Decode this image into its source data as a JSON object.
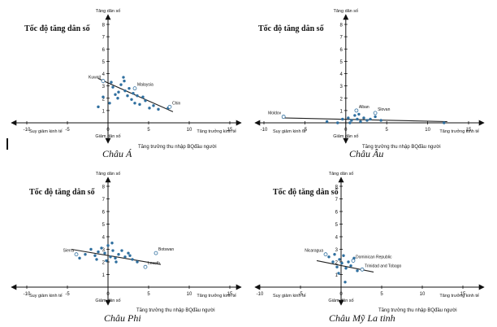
{
  "colors": {
    "point": "#2f6f9f",
    "point_hollow": "#ffffff",
    "axis": "#111111",
    "trend": "#222222"
  },
  "chart_data": [
    {
      "type": "scatter",
      "title": "Tốc độ tăng dân số",
      "caption": "Châu Á",
      "xlabel": "Tăng trưởng thu nhập BQđầu người",
      "y_top_label": "Tăng dân số",
      "y_bottom_label": "Giảm dân số",
      "x_left_label": "Suy giảm kinh tế",
      "x_right_label": "Tăng trưởng kinh tế",
      "xlim": [
        -10,
        15
      ],
      "ylim": [
        -1,
        8
      ],
      "xticks": [
        "-10",
        "-5",
        "0",
        "5",
        "10",
        "15"
      ],
      "yticks": [
        "1",
        "2",
        "3",
        "4",
        "5",
        "6",
        "7",
        "8"
      ],
      "points": [
        [
          -1.2,
          1.3
        ],
        [
          -0.6,
          2.1
        ],
        [
          0.4,
          3.3
        ],
        [
          0.6,
          2.9
        ],
        [
          0.9,
          2.3
        ],
        [
          1.3,
          2.5
        ],
        [
          1.6,
          3.1
        ],
        [
          1.9,
          3.7
        ],
        [
          2.1,
          2.6
        ],
        [
          2.4,
          2.2
        ],
        [
          2.6,
          2.8
        ],
        [
          2.9,
          1.9
        ],
        [
          3.3,
          1.6
        ],
        [
          3.6,
          2.2
        ],
        [
          3.9,
          1.5
        ],
        [
          4.3,
          2.1
        ],
        [
          4.6,
          1.8
        ],
        [
          5.1,
          1.2
        ],
        [
          5.6,
          1.4
        ],
        [
          6.2,
          1.1
        ],
        [
          7.4,
          1.2
        ],
        [
          1.2,
          2.0
        ],
        [
          2.0,
          3.4
        ],
        [
          3.1,
          2.4
        ],
        [
          0.2,
          1.6
        ]
      ],
      "hollow_points": [
        [
          -0.6,
          3.4
        ],
        [
          3.3,
          2.8
        ],
        [
          7.6,
          1.3
        ]
      ],
      "annotations": [
        {
          "text": "Kuwait",
          "x": -0.6,
          "y": 3.4
        },
        {
          "text": "Malaysia",
          "x": 3.3,
          "y": 2.8
        },
        {
          "text": "Chin",
          "x": 7.6,
          "y": 1.3
        }
      ],
      "trend": [
        [
          -1.2,
          3.6
        ],
        [
          8,
          0.9
        ]
      ]
    },
    {
      "type": "scatter",
      "title": "Tốc độ tăng dân số",
      "caption": "Châu Âu",
      "xlabel": "Tăng trưởng thu nhập BQđầu người",
      "y_top_label": "Tăng dân số",
      "y_bottom_label": "Giảm dân số",
      "x_left_label": "Suy giảm kinh tế",
      "x_right_label": "Tăng trưởng kinh tế",
      "xlim": [
        -10,
        15
      ],
      "ylim": [
        -1,
        8
      ],
      "xticks": [
        "-10",
        "-5",
        "0",
        "5",
        "10",
        "15"
      ],
      "yticks": [
        "1",
        "2",
        "3",
        "4",
        "5",
        "6",
        "7",
        "8"
      ],
      "points": [
        [
          -2.3,
          0.1
        ],
        [
          -1.0,
          0.0
        ],
        [
          -0.4,
          0.3
        ],
        [
          0.3,
          0.4
        ],
        [
          0.7,
          0.2
        ],
        [
          1.1,
          0.6
        ],
        [
          1.4,
          0.3
        ],
        [
          1.8,
          0.1
        ],
        [
          2.2,
          0.4
        ],
        [
          2.6,
          0.2
        ],
        [
          3.0,
          0.3
        ],
        [
          3.6,
          0.5
        ],
        [
          4.3,
          0.2
        ],
        [
          12.0,
          0.0
        ],
        [
          1.6,
          0.7
        ],
        [
          0.5,
          0.0
        ]
      ],
      "hollow_points": [
        [
          -7.6,
          0.5
        ],
        [
          1.3,
          1.0
        ],
        [
          3.6,
          0.8
        ]
      ],
      "annotations": [
        {
          "text": "Moldov",
          "x": -7.6,
          "y": 0.5
        },
        {
          "text": "Alban",
          "x": 1.3,
          "y": 1.0
        },
        {
          "text": "Slovan",
          "x": 3.6,
          "y": 0.8
        }
      ],
      "trend": [
        [
          -7.8,
          0.4
        ],
        [
          12.4,
          0.1
        ]
      ]
    },
    {
      "type": "scatter",
      "title": "Tốc độ tăng dân số",
      "caption": "Châu Phi",
      "xlabel": "Tăng trưởng thu nhập BQđầu người",
      "y_top_label": "Tăng dân số",
      "y_bottom_label": "Giảm dân số",
      "x_left_label": "Suy giảm kinh tế",
      "x_right_label": "Tăng trưởng kinh tế",
      "xlim": [
        -10,
        15
      ],
      "ylim": [
        -1,
        8
      ],
      "xticks": [
        "-10",
        "-5",
        "0",
        "5",
        "10",
        "15"
      ],
      "yticks": [
        "1",
        "2",
        "3",
        "4",
        "5",
        "6",
        "7",
        "8"
      ],
      "points": [
        [
          -3.5,
          2.3
        ],
        [
          -2.8,
          2.6
        ],
        [
          -2.1,
          3.0
        ],
        [
          -1.6,
          2.5
        ],
        [
          -1.2,
          2.8
        ],
        [
          -0.8,
          3.1
        ],
        [
          -0.4,
          2.7
        ],
        [
          0.0,
          3.3
        ],
        [
          0.3,
          2.4
        ],
        [
          0.6,
          2.9
        ],
        [
          0.9,
          2.3
        ],
        [
          1.3,
          2.6
        ],
        [
          1.7,
          2.9
        ],
        [
          2.1,
          2.4
        ],
        [
          2.5,
          2.7
        ],
        [
          3.0,
          2.2
        ],
        [
          3.6,
          2.0
        ],
        [
          -0.2,
          2.1
        ],
        [
          0.5,
          3.5
        ],
        [
          1.0,
          2.0
        ],
        [
          -1.4,
          2.2
        ],
        [
          2.7,
          2.5
        ]
      ],
      "hollow_points": [
        [
          -3.9,
          2.6
        ],
        [
          4.6,
          1.6
        ],
        [
          5.9,
          2.7
        ]
      ],
      "annotations": [
        {
          "text": "Sierra",
          "x": -3.9,
          "y": 2.6
        },
        {
          "text": "Lesoth",
          "x": 4.6,
          "y": 1.6
        },
        {
          "text": "Botswan",
          "x": 5.9,
          "y": 2.7
        }
      ],
      "trend": [
        [
          -4.5,
          3.0
        ],
        [
          6.5,
          1.8
        ]
      ]
    },
    {
      "type": "scatter",
      "title": "Tốc độ tăng dân số",
      "caption": "Châu Mỹ La tinh",
      "xlabel": "Tăng trưởng thu nhập BQđầu người",
      "y_top_label": "Tăng dân số",
      "y_bottom_label": "Giảm dân số",
      "x_left_label": "Suy giảm kinh tế",
      "x_right_label": "Tăng trưởng kinh tế",
      "xlim": [
        -10,
        15
      ],
      "ylim": [
        -1,
        8
      ],
      "xticks": [
        "-10",
        "-5",
        "0",
        "5",
        "10",
        "15"
      ],
      "yticks": [
        "1",
        "2",
        "3",
        "4",
        "5",
        "6",
        "7",
        "8"
      ],
      "points": [
        [
          -1.5,
          2.4
        ],
        [
          -1.0,
          2.0
        ],
        [
          -0.8,
          2.6
        ],
        [
          -0.5,
          1.6
        ],
        [
          -0.2,
          2.2
        ],
        [
          0.1,
          1.9
        ],
        [
          0.3,
          2.5
        ],
        [
          0.6,
          1.5
        ],
        [
          0.9,
          2.0
        ],
        [
          1.2,
          1.7
        ],
        [
          1.6,
          2.3
        ],
        [
          2.0,
          1.3
        ],
        [
          -0.3,
          1.1
        ],
        [
          0.5,
          0.4
        ]
      ],
      "hollow_points": [
        [
          -1.9,
          2.6
        ],
        [
          1.5,
          2.1
        ],
        [
          2.6,
          1.4
        ]
      ],
      "annotations": [
        {
          "text": "Nicaragua",
          "x": -1.9,
          "y": 2.6
        },
        {
          "text": "Dominican Republic",
          "x": 1.5,
          "y": 2.1
        },
        {
          "text": "Trinidad and Tobago",
          "x": 2.6,
          "y": 1.4
        }
      ],
      "trend": [
        [
          -3.0,
          2.1
        ],
        [
          4.0,
          1.2
        ]
      ]
    }
  ]
}
